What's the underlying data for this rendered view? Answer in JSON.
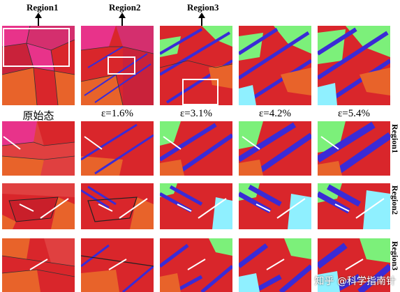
{
  "top_labels": [
    "Region1",
    "Region2",
    "Region3"
  ],
  "columns": [
    "原始态",
    "ε=1.6%",
    "ε=3.1%",
    "ε=4.2%",
    "ε=5.4%"
  ],
  "row_labels": [
    "Region1",
    "Region2",
    "Region3"
  ],
  "watermark": "知乎 @科学指南针",
  "colors": {
    "red": "#d9262b",
    "pink": "#e8338a",
    "orange": "#e8632a",
    "blue": "#3a2bd6",
    "green": "#7cf07a",
    "cyan": "#8ff0ff"
  }
}
